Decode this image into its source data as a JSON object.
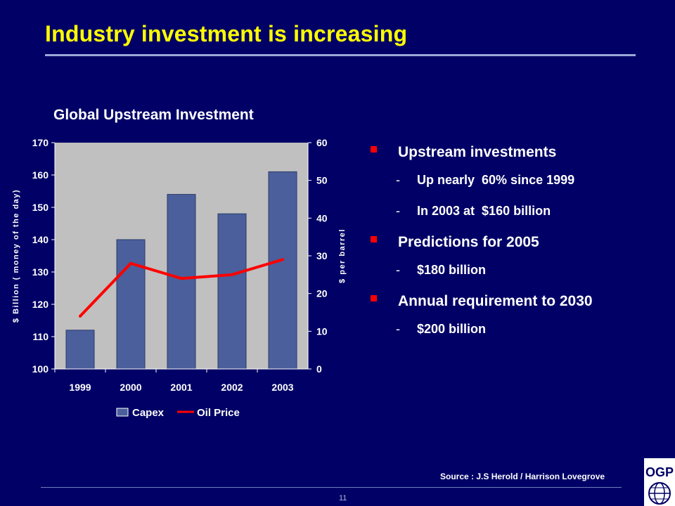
{
  "slide": {
    "title": "Industry investment is increasing",
    "chart_title": "Global Upstream Investment",
    "source": "Source : J.S Herold / Harrison Lovegrove",
    "page_number": "11",
    "logo_text": "OGP"
  },
  "bullets": [
    {
      "text": "Upstream investments",
      "subs": [
        "Up nearly  60% since 1999",
        "In 2003 at  $160 billion"
      ]
    },
    {
      "text": "Predictions for 2005",
      "subs": [
        "$180 billion"
      ]
    },
    {
      "text": "Annual requirement to 2030",
      "subs": [
        "$200 billion"
      ]
    }
  ],
  "colors": {
    "background": "#000066",
    "title": "#ffff00",
    "bar": "#4a5f9c",
    "line": "#ff0000",
    "plot_area": "#c0c0c0",
    "bullet_marker": "#ff0000"
  },
  "chart_data": {
    "type": "bar",
    "title": "Global Upstream Investment",
    "categories": [
      "1999",
      "2000",
      "2001",
      "2002",
      "2003"
    ],
    "ylabel": "$ Billion ( money of the day)",
    "y2label": "$ per barrel",
    "ylim": [
      100,
      170
    ],
    "y2lim": [
      0,
      60
    ],
    "yticks": [
      100,
      110,
      120,
      130,
      140,
      150,
      160,
      170
    ],
    "y2ticks": [
      0,
      10,
      20,
      30,
      40,
      50,
      60
    ],
    "series": [
      {
        "name": "Capex",
        "type": "bar",
        "axis": "left",
        "values": [
          112,
          140,
          154,
          148,
          161
        ]
      },
      {
        "name": "Oil Price",
        "type": "line",
        "axis": "right",
        "values": [
          14,
          28,
          24,
          25,
          29
        ]
      }
    ],
    "grid": false,
    "legend": "bottom"
  }
}
